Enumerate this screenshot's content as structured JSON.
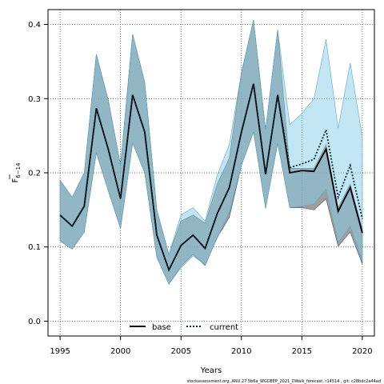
{
  "chart_data": {
    "type": "line",
    "xlabel": "Years",
    "ylabel_main": "F",
    "ylabel_sub": "6−14",
    "xlim": [
      1994,
      2021
    ],
    "ylim": [
      -0.02,
      0.42
    ],
    "xticks": [
      1995,
      2000,
      2005,
      2010,
      2015,
      2020
    ],
    "yticks": [
      0.0,
      0.1,
      0.2,
      0.3,
      0.4
    ],
    "ytick_labels": [
      "0.0",
      "0.1",
      "0.2",
      "0.3",
      "0.4"
    ],
    "grid": true,
    "legend_position": "bottom-center",
    "x": [
      1995,
      1996,
      1997,
      1998,
      1999,
      2000,
      2001,
      2002,
      2003,
      2004,
      2005,
      2006,
      2007,
      2008,
      2009,
      2010,
      2011,
      2012,
      2013,
      2014,
      2015,
      2016,
      2017,
      2018,
      2019,
      2020
    ],
    "series": [
      {
        "name": "base",
        "style": "solid",
        "color": "#000000",
        "band_color": "#7f7f7f",
        "values": [
          0.143,
          0.128,
          0.155,
          0.287,
          0.231,
          0.165,
          0.305,
          0.255,
          0.116,
          0.069,
          0.102,
          0.116,
          0.098,
          0.145,
          0.18,
          0.255,
          0.32,
          0.198,
          0.305,
          0.2,
          0.203,
          0.202,
          0.232,
          0.148,
          0.18,
          0.119
        ],
        "upper": [
          0.19,
          0.167,
          0.2,
          0.36,
          0.297,
          0.21,
          0.387,
          0.322,
          0.15,
          0.09,
          0.135,
          0.143,
          0.132,
          0.185,
          0.22,
          0.335,
          0.406,
          0.258,
          0.393,
          0.206,
          0.206,
          0.206,
          0.238,
          0.153,
          0.185,
          0.124
        ],
        "lower": [
          0.108,
          0.097,
          0.12,
          0.227,
          0.175,
          0.125,
          0.24,
          0.2,
          0.086,
          0.05,
          0.074,
          0.09,
          0.075,
          0.113,
          0.14,
          0.21,
          0.255,
          0.152,
          0.24,
          0.153,
          0.153,
          0.15,
          0.165,
          0.101,
          0.12,
          0.077
        ]
      },
      {
        "name": "current",
        "style": "dotted",
        "color": "#0b2d3c",
        "band_color": "#87ceeb",
        "values": [
          0.143,
          0.128,
          0.155,
          0.287,
          0.231,
          0.165,
          0.305,
          0.255,
          0.116,
          0.069,
          0.102,
          0.116,
          0.098,
          0.145,
          0.18,
          0.255,
          0.32,
          0.198,
          0.305,
          0.207,
          0.212,
          0.218,
          0.258,
          0.167,
          0.21,
          0.138
        ],
        "upper": [
          0.19,
          0.167,
          0.2,
          0.36,
          0.297,
          0.21,
          0.387,
          0.322,
          0.15,
          0.09,
          0.143,
          0.153,
          0.135,
          0.197,
          0.238,
          0.335,
          0.406,
          0.258,
          0.393,
          0.265,
          0.28,
          0.3,
          0.38,
          0.26,
          0.348,
          0.248
        ],
        "lower": [
          0.108,
          0.097,
          0.12,
          0.227,
          0.175,
          0.125,
          0.24,
          0.2,
          0.086,
          0.05,
          0.072,
          0.088,
          0.076,
          0.112,
          0.147,
          0.21,
          0.255,
          0.152,
          0.24,
          0.153,
          0.155,
          0.158,
          0.178,
          0.106,
          0.128,
          0.082
        ]
      }
    ]
  },
  "footer": "stockassessment.org,  ANU.27.5b6a_WGDEEP_2021_DWalk_forecast,  r14514 ,  git:  c28bdc2a44ad"
}
